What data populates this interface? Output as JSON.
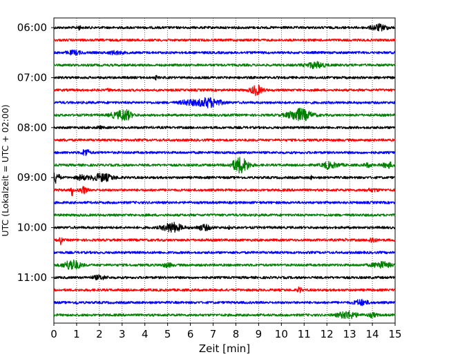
{
  "chart_data": {
    "type": "line",
    "xlabel": "Zeit  [min]",
    "ylabel": "UTC (Lokalzeit = UTC + 02:00)",
    "xlim": [
      0,
      15
    ],
    "x_ticks": [
      "0",
      "1",
      "2",
      "3",
      "4",
      "5",
      "6",
      "7",
      "8",
      "9",
      "10",
      "11",
      "12",
      "13",
      "14",
      "15"
    ],
    "y_ticks": [
      "06:00",
      "07:00",
      "08:00",
      "09:00",
      "10:00",
      "11:00"
    ],
    "grid": "vertical dotted lines at each minute",
    "series": [
      {
        "start": "06:00",
        "color": "#000000",
        "events": [
          [
            1.1,
            0.5,
            0.08
          ],
          [
            14.3,
            0.8,
            0.35
          ]
        ]
      },
      {
        "start": "06:15",
        "color": "#ff0000",
        "events": []
      },
      {
        "start": "06:30",
        "color": "#0000ff",
        "events": [
          [
            0.9,
            0.5,
            0.3
          ],
          [
            2.7,
            0.4,
            0.3
          ]
        ]
      },
      {
        "start": "06:45",
        "color": "#008000",
        "events": [
          [
            11.5,
            0.8,
            0.4
          ]
        ]
      },
      {
        "start": "07:00",
        "color": "#000000",
        "events": [
          [
            4.5,
            0.4,
            0.06
          ]
        ]
      },
      {
        "start": "07:15",
        "color": "#ff0000",
        "events": [
          [
            8.9,
            1.3,
            0.25
          ],
          [
            2.4,
            0.4,
            0.05
          ]
        ]
      },
      {
        "start": "07:30",
        "color": "#0000ff",
        "events": [
          [
            6.8,
            1.3,
            0.5
          ],
          [
            5.9,
            0.6,
            0.35
          ]
        ]
      },
      {
        "start": "07:45",
        "color": "#008000",
        "events": [
          [
            3.1,
            1.6,
            0.3
          ],
          [
            10.8,
            1.7,
            0.5
          ],
          [
            2.6,
            0.5,
            0.2
          ]
        ]
      },
      {
        "start": "08:00",
        "color": "#000000",
        "events": [
          [
            2.0,
            0.3,
            0.1
          ]
        ]
      },
      {
        "start": "08:15",
        "color": "#ff0000",
        "events": [
          [
            0.5,
            0.3,
            0.05
          ]
        ]
      },
      {
        "start": "08:30",
        "color": "#0000ff",
        "events": [
          [
            1.4,
            1.0,
            0.15
          ]
        ]
      },
      {
        "start": "08:45",
        "color": "#008000",
        "events": [
          [
            8.2,
            2.2,
            0.35
          ],
          [
            12.2,
            0.6,
            0.4
          ],
          [
            14.7,
            0.7,
            0.25
          ],
          [
            12.0,
            0.5,
            0.1
          ],
          [
            13.8,
            0.5,
            0.15
          ]
        ]
      },
      {
        "start": "09:00",
        "color": "#000000",
        "events": [
          [
            2.1,
            1.0,
            0.5
          ],
          [
            0.1,
            1.4,
            0.15
          ],
          [
            1.2,
            0.6,
            0.2
          ],
          [
            11.3,
            0.4,
            0.05
          ]
        ]
      },
      {
        "start": "09:15",
        "color": "#ff0000",
        "events": [
          [
            0.8,
            1.8,
            0.04
          ],
          [
            1.3,
            0.9,
            0.15
          ],
          [
            14.0,
            0.3,
            0.3
          ]
        ]
      },
      {
        "start": "09:30",
        "color": "#0000ff",
        "events": []
      },
      {
        "start": "09:45",
        "color": "#008000",
        "events": []
      },
      {
        "start": "10:00",
        "color": "#000000",
        "events": [
          [
            5.2,
            1.3,
            0.4
          ],
          [
            6.6,
            0.7,
            0.3
          ],
          [
            7.7,
            0.3,
            0.05
          ]
        ]
      },
      {
        "start": "10:15",
        "color": "#ff0000",
        "events": [
          [
            0.3,
            1.2,
            0.05
          ],
          [
            14.0,
            0.7,
            0.15
          ],
          [
            12.8,
            0.3,
            0.05
          ]
        ]
      },
      {
        "start": "10:30",
        "color": "#0000ff",
        "events": []
      },
      {
        "start": "10:45",
        "color": "#008000",
        "events": [
          [
            0.8,
            1.4,
            0.35
          ],
          [
            14.4,
            0.8,
            0.4
          ],
          [
            5.0,
            0.5,
            0.2
          ]
        ]
      },
      {
        "start": "11:00",
        "color": "#000000",
        "events": [
          [
            2.0,
            0.5,
            0.3
          ]
        ]
      },
      {
        "start": "11:15",
        "color": "#ff0000",
        "events": [
          [
            10.8,
            0.8,
            0.08
          ]
        ]
      },
      {
        "start": "11:30",
        "color": "#0000ff",
        "events": [
          [
            13.5,
            0.7,
            0.3
          ],
          [
            1.0,
            0.4,
            0.05
          ]
        ]
      },
      {
        "start": "11:45",
        "color": "#008000",
        "events": [
          [
            12.9,
            1.0,
            0.4
          ],
          [
            14.0,
            0.5,
            0.2
          ]
        ]
      }
    ]
  }
}
